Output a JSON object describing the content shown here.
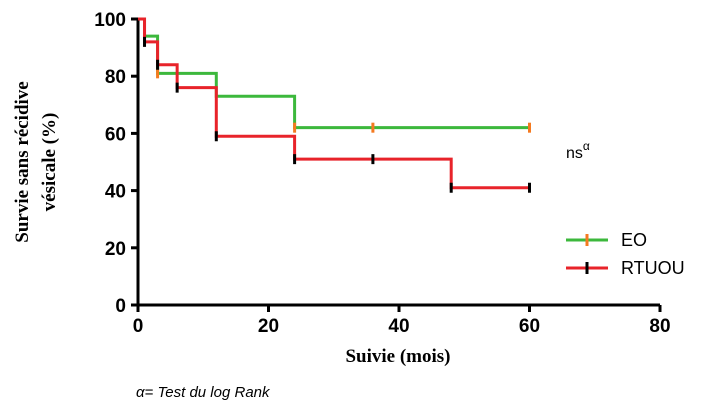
{
  "chart_data": {
    "type": "line",
    "step": true,
    "xlabel": "Suivie (mois)",
    "ylabel_lines": [
      "Survie sans récidive",
      "vésicale (%)"
    ],
    "xlim": [
      0,
      80
    ],
    "ylim": [
      0,
      100
    ],
    "xticks": [
      0,
      20,
      40,
      60,
      80
    ],
    "yticks": [
      0,
      20,
      40,
      60,
      80,
      100
    ],
    "grid": false,
    "legend_position": "right",
    "series": [
      {
        "name": "EO",
        "color": "#3cb83c",
        "censor_color": "#f47a20",
        "x": [
          0,
          1,
          3,
          12,
          24,
          60
        ],
        "y": [
          100,
          94,
          81,
          73,
          62,
          62
        ],
        "censored": [
          {
            "x": 3,
            "y": 81
          },
          {
            "x": 24,
            "y": 62
          },
          {
            "x": 36,
            "y": 62
          },
          {
            "x": 60,
            "y": 62
          }
        ]
      },
      {
        "name": "RTUOU",
        "color": "#e8232a",
        "censor_color": "#000000",
        "x": [
          0,
          1,
          3,
          6,
          12,
          24,
          48,
          60
        ],
        "y": [
          100,
          92,
          84,
          76,
          59,
          51,
          41,
          41
        ],
        "censored": [
          {
            "x": 1,
            "y": 92
          },
          {
            "x": 3,
            "y": 84
          },
          {
            "x": 6,
            "y": 76
          },
          {
            "x": 12,
            "y": 59
          },
          {
            "x": 24,
            "y": 51
          },
          {
            "x": 36,
            "y": 51
          },
          {
            "x": 48,
            "y": 41
          },
          {
            "x": 60,
            "y": 41
          }
        ]
      }
    ],
    "annotation": {
      "text": "ns",
      "superscript": "α"
    },
    "footnote": "α= Test du log Rank"
  }
}
